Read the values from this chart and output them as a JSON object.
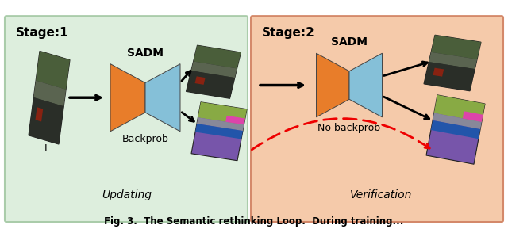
{
  "fig_width": 6.4,
  "fig_height": 2.89,
  "dpi": 100,
  "bg_color": "#ffffff",
  "stage1_bg": "#ddeedd",
  "stage2_bg": "#f5caaa",
  "stage1_border": "#aaccaa",
  "stage2_border": "#d4896a",
  "stage1_label": "Stage:1",
  "stage2_label": "Stage:2",
  "updating_label": "Updating",
  "verification_label": "Verification",
  "sadm_label": "SADM",
  "backprob_label": "Backprob",
  "no_backprob_label": "No backprob",
  "input_label": "I",
  "orange_color": "#E87D2A",
  "blue_color": "#85C0D8",
  "arrow_color": "#000000",
  "dashed_arrow_color": "#EE0000",
  "text_color": "#000000",
  "img_base": "#4a5a4a",
  "img_mid": "#666655",
  "img_light": "#888877",
  "img_dark": "#2a3028",
  "img_red": "#993322",
  "seg_purple": "#7755aa",
  "seg_green": "#88aa44",
  "seg_blue": "#2255aa",
  "seg_magenta": "#dd44aa",
  "seg_grey": "#888899"
}
